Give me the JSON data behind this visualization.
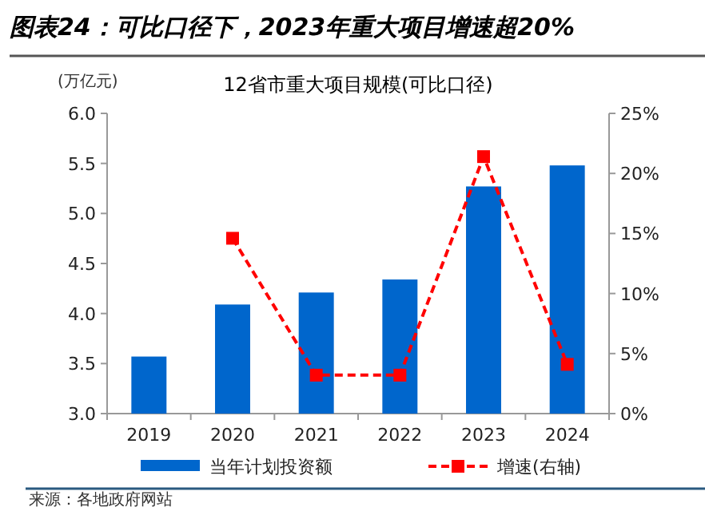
{
  "chart_data": {
    "type": "bar",
    "title": "图表24：可比口径下，2023年重大项目增速超20%",
    "subtitle": "12省市重大项目规模(可比口径)",
    "ylabel": "(万亿元)",
    "categories": [
      "2019",
      "2020",
      "2021",
      "2022",
      "2023",
      "2024"
    ],
    "series": [
      {
        "name": "当年计划投资额",
        "color": "#0066cc",
        "values": [
          3.57,
          4.09,
          4.21,
          4.34,
          5.27,
          5.48
        ]
      },
      {
        "name": "增速(右轴)",
        "type": "line",
        "axis": "y2",
        "color": "#ff0000",
        "marker": "square",
        "line_style": "dashed",
        "values": [
          null,
          14.6,
          3.2,
          3.2,
          21.4,
          4.1
        ]
      }
    ],
    "ylim": [
      3.0,
      6.0
    ],
    "yticks": [
      {
        "value": 3.0,
        "label": "3.0"
      },
      {
        "value": 3.5,
        "label": "3.5"
      },
      {
        "value": 4.0,
        "label": "4.0"
      },
      {
        "value": 4.5,
        "label": "4.5"
      },
      {
        "value": 5.0,
        "label": "5.0"
      },
      {
        "value": 5.5,
        "label": "5.5"
      },
      {
        "value": 6.0,
        "label": "6.0"
      }
    ],
    "y2lim": [
      0,
      25
    ],
    "y2ticks": [
      {
        "value": 0,
        "label": "0%"
      },
      {
        "value": 5,
        "label": "5%"
      },
      {
        "value": 10,
        "label": "10%"
      },
      {
        "value": 15,
        "label": "15%"
      },
      {
        "value": 20,
        "label": "20%"
      },
      {
        "value": 25,
        "label": "25%"
      }
    ],
    "grid": false,
    "legend": "bottom",
    "annotations": [
      "来源：各地政府网站"
    ]
  }
}
